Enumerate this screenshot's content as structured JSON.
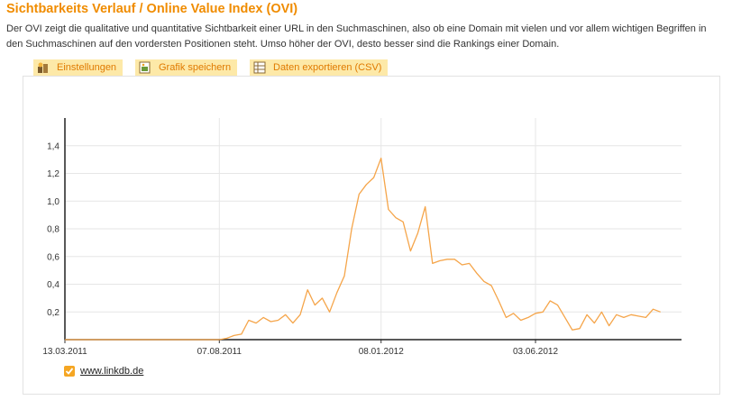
{
  "header": {
    "title": "Sichtbarkeits Verlauf / Online Value Index (OVI)",
    "description": "Der OVI zeigt die qualitative und quantitative Sichtbarkeit einer URL in den Suchmaschinen, also ob eine Domain mit vielen und vor allem wichtigen Begriffen in den Suchmaschinen auf den vordersten Positionen steht. Umso höher der OVI, desto besser sind die Rankings einer Domain."
  },
  "toolbar": {
    "settings_label": "Einstellungen",
    "save_chart_label": "Grafik speichern",
    "export_label": "Daten exportieren (CSV)",
    "settings_icon": "settings-icon",
    "save_icon": "image-save-icon",
    "export_icon": "table-export-icon"
  },
  "colors": {
    "accent": "#f08c00",
    "line": "#f5a54a",
    "button_bg": "#fde9a8"
  },
  "chart_data": {
    "type": "line",
    "title": "",
    "xlabel": "",
    "ylabel": "",
    "xlim": [
      "2011-03-13",
      "2012-10-20"
    ],
    "ylim": [
      0,
      1.6
    ],
    "grid": true,
    "legend_placement": "bottom-left",
    "x_ticks": [
      "13.03.2011",
      "07.08.2011",
      "08.01.2012",
      "03.06.2012"
    ],
    "x_tick_dates": [
      "2011-03-13",
      "2011-08-07",
      "2012-01-08",
      "2012-06-03"
    ],
    "y_ticks": [
      0.2,
      0.4,
      0.6,
      0.8,
      1.0,
      1.2,
      1.4
    ],
    "y_tick_labels": [
      "0,2",
      "0,4",
      "0,6",
      "0,8",
      "1,0",
      "1,2",
      "1,4"
    ],
    "series": [
      {
        "name": "www.linkdb.de",
        "color": "#f5a54a",
        "points": [
          [
            "2011-08-07",
            0.0
          ],
          [
            "2011-08-14",
            0.01
          ],
          [
            "2011-08-21",
            0.03
          ],
          [
            "2011-08-28",
            0.04
          ],
          [
            "2011-09-04",
            0.14
          ],
          [
            "2011-09-11",
            0.12
          ],
          [
            "2011-09-18",
            0.16
          ],
          [
            "2011-09-25",
            0.13
          ],
          [
            "2011-10-02",
            0.14
          ],
          [
            "2011-10-09",
            0.18
          ],
          [
            "2011-10-16",
            0.12
          ],
          [
            "2011-10-23",
            0.18
          ],
          [
            "2011-10-30",
            0.36
          ],
          [
            "2011-11-06",
            0.25
          ],
          [
            "2011-11-13",
            0.3
          ],
          [
            "2011-11-20",
            0.2
          ],
          [
            "2011-11-27",
            0.34
          ],
          [
            "2011-12-04",
            0.46
          ],
          [
            "2011-12-11",
            0.8
          ],
          [
            "2011-12-18",
            1.05
          ],
          [
            "2011-12-25",
            1.12
          ],
          [
            "2012-01-01",
            1.17
          ],
          [
            "2012-01-08",
            1.31
          ],
          [
            "2012-01-15",
            0.94
          ],
          [
            "2012-01-22",
            0.88
          ],
          [
            "2012-01-29",
            0.85
          ],
          [
            "2012-02-05",
            0.64
          ],
          [
            "2012-02-12",
            0.77
          ],
          [
            "2012-02-19",
            0.96
          ],
          [
            "2012-02-26",
            0.55
          ],
          [
            "2012-03-04",
            0.57
          ],
          [
            "2012-03-11",
            0.58
          ],
          [
            "2012-03-18",
            0.58
          ],
          [
            "2012-03-25",
            0.54
          ],
          [
            "2012-04-01",
            0.55
          ],
          [
            "2012-04-08",
            0.48
          ],
          [
            "2012-04-15",
            0.42
          ],
          [
            "2012-04-22",
            0.39
          ],
          [
            "2012-04-29",
            0.28
          ],
          [
            "2012-05-06",
            0.16
          ],
          [
            "2012-05-13",
            0.19
          ],
          [
            "2012-05-20",
            0.14
          ],
          [
            "2012-05-27",
            0.16
          ],
          [
            "2012-06-03",
            0.19
          ],
          [
            "2012-06-10",
            0.2
          ],
          [
            "2012-06-17",
            0.28
          ],
          [
            "2012-06-24",
            0.25
          ],
          [
            "2012-07-01",
            0.16
          ],
          [
            "2012-07-08",
            0.07
          ],
          [
            "2012-07-15",
            0.08
          ],
          [
            "2012-07-22",
            0.18
          ],
          [
            "2012-07-29",
            0.12
          ],
          [
            "2012-08-05",
            0.2
          ],
          [
            "2012-08-12",
            0.1
          ],
          [
            "2012-08-19",
            0.18
          ],
          [
            "2012-08-26",
            0.16
          ],
          [
            "2012-09-02",
            0.18
          ],
          [
            "2012-09-09",
            0.17
          ],
          [
            "2012-09-16",
            0.16
          ],
          [
            "2012-09-23",
            0.22
          ],
          [
            "2012-09-30",
            0.2
          ]
        ]
      }
    ]
  }
}
